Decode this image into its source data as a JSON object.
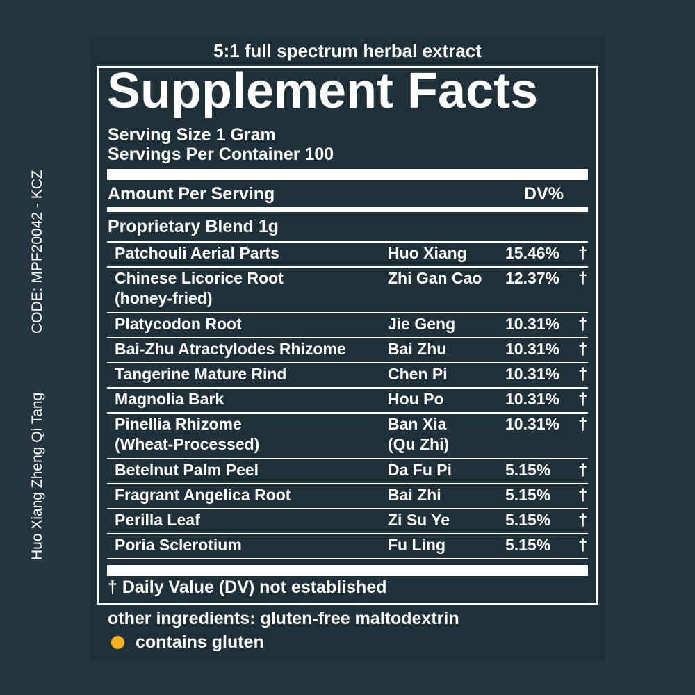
{
  "side": {
    "name": "Huo Xiang Zheng Qi Tang",
    "code": "CODE: MPF20042 - KCZ"
  },
  "label": {
    "subtitle": "5:1 full spectrum herbal extract",
    "title": "Supplement Facts",
    "serving_size": "Serving Size 1 Gram",
    "servings_per_container": "Servings Per Container 100",
    "amount_header": "Amount Per Serving",
    "dv_header": "DV%",
    "blend": "Proprietary Blend 1g",
    "ingredients": [
      {
        "english": "Patchouli Aerial Parts",
        "chinese": "Huo Xiang",
        "dv": "15.46%",
        "dagger": "†"
      },
      {
        "english": "Chinese Licorice Root\n(honey-fried)",
        "chinese": "Zhi Gan Cao",
        "dv": "12.37%",
        "dagger": "†"
      },
      {
        "english": "Platycodon Root",
        "chinese": "Jie Geng",
        "dv": "10.31%",
        "dagger": "†"
      },
      {
        "english": "Bai-Zhu Atractylodes Rhizome",
        "chinese": "Bai Zhu",
        "dv": "10.31%",
        "dagger": "†"
      },
      {
        "english": "Tangerine Mature Rind",
        "chinese": "Chen Pi",
        "dv": "10.31%",
        "dagger": "†"
      },
      {
        "english": "Magnolia Bark",
        "chinese": "Hou Po",
        "dv": "10.31%",
        "dagger": "†"
      },
      {
        "english": "Pinellia Rhizome\n(Wheat-Processed)",
        "chinese": "Ban Xia\n(Qu Zhi)",
        "dv": "10.31%",
        "dagger": "†"
      },
      {
        "english": "Betelnut Palm Peel",
        "chinese": "Da Fu Pi",
        "dv": "5.15%",
        "dagger": "†"
      },
      {
        "english": "Fragrant Angelica Root",
        "chinese": "Bai Zhi",
        "dv": "5.15%",
        "dagger": "†"
      },
      {
        "english": "Perilla Leaf",
        "chinese": "Zi Su Ye",
        "dv": "5.15%",
        "dagger": "†"
      },
      {
        "english": "Poria Sclerotium",
        "chinese": "Fu Ling",
        "dv": "5.15%",
        "dagger": "†"
      }
    ],
    "footnote": "† Daily Value (DV) not established",
    "other_ingredients": "other ingredients: gluten-free maltodextrin",
    "gluten_note": "contains gluten",
    "gluten_dot_color": "#f2b31b"
  }
}
